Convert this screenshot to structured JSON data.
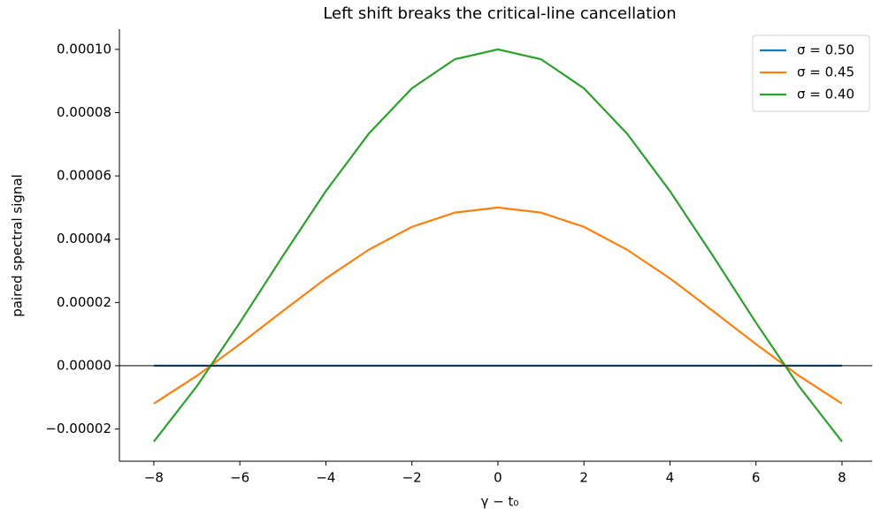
{
  "chart_data": {
    "type": "line",
    "title": "Left shift breaks the critical-line cancellation",
    "xlabel": "γ − t₀",
    "ylabel": "paired spectral signal",
    "x": [
      -8,
      -7,
      -6,
      -5,
      -4,
      -3,
      -2,
      -1,
      0,
      1,
      2,
      3,
      4,
      5,
      6,
      7,
      8
    ],
    "series": [
      {
        "name": "σ = 0.50",
        "color": "#1f77b4",
        "values": [
          0,
          0,
          0,
          0,
          0,
          0,
          0,
          0,
          0,
          0,
          0,
          0,
          0,
          0,
          0,
          0,
          0
        ]
      },
      {
        "name": "σ = 0.45",
        "color": "#ff7f0e",
        "values": [
          -1.2e-05,
          -3.2e-06,
          6.8e-06,
          1.73e-05,
          2.76e-05,
          3.67e-05,
          4.39e-05,
          4.84e-05,
          5e-05,
          4.84e-05,
          4.39e-05,
          3.67e-05,
          2.76e-05,
          1.73e-05,
          6.8e-06,
          -3.2e-06,
          -1.2e-05
        ]
      },
      {
        "name": "σ = 0.40",
        "color": "#2ca02c",
        "values": [
          -2.4e-05,
          -6.5e-06,
          1.36e-05,
          3.47e-05,
          5.52e-05,
          7.34e-05,
          8.77e-05,
          9.69e-05,
          0.0001,
          9.69e-05,
          8.77e-05,
          7.34e-05,
          5.52e-05,
          3.47e-05,
          1.36e-05,
          -6.5e-06,
          -2.4e-05
        ]
      }
    ],
    "xlim": [
      -8.8,
      8.7
    ],
    "ylim": [
      -3.02e-05,
      0.0001064
    ],
    "xticks": [
      {
        "value": -8,
        "label": "−8"
      },
      {
        "value": -6,
        "label": "−6"
      },
      {
        "value": -4,
        "label": "−4"
      },
      {
        "value": -2,
        "label": "−2"
      },
      0,
      2,
      4,
      6,
      8
    ],
    "yticks": [
      {
        "value": -2e-05,
        "label": "−0.00002"
      },
      {
        "value": 0,
        "label": "0.00000"
      },
      {
        "value": 2e-05,
        "label": "0.00002"
      },
      {
        "value": 4e-05,
        "label": "0.00004"
      },
      {
        "value": 6e-05,
        "label": "0.00006"
      },
      {
        "value": 8e-05,
        "label": "0.00008"
      },
      {
        "value": 0.0001,
        "label": "0.00010"
      }
    ],
    "legend": "upper right",
    "grid": false
  }
}
